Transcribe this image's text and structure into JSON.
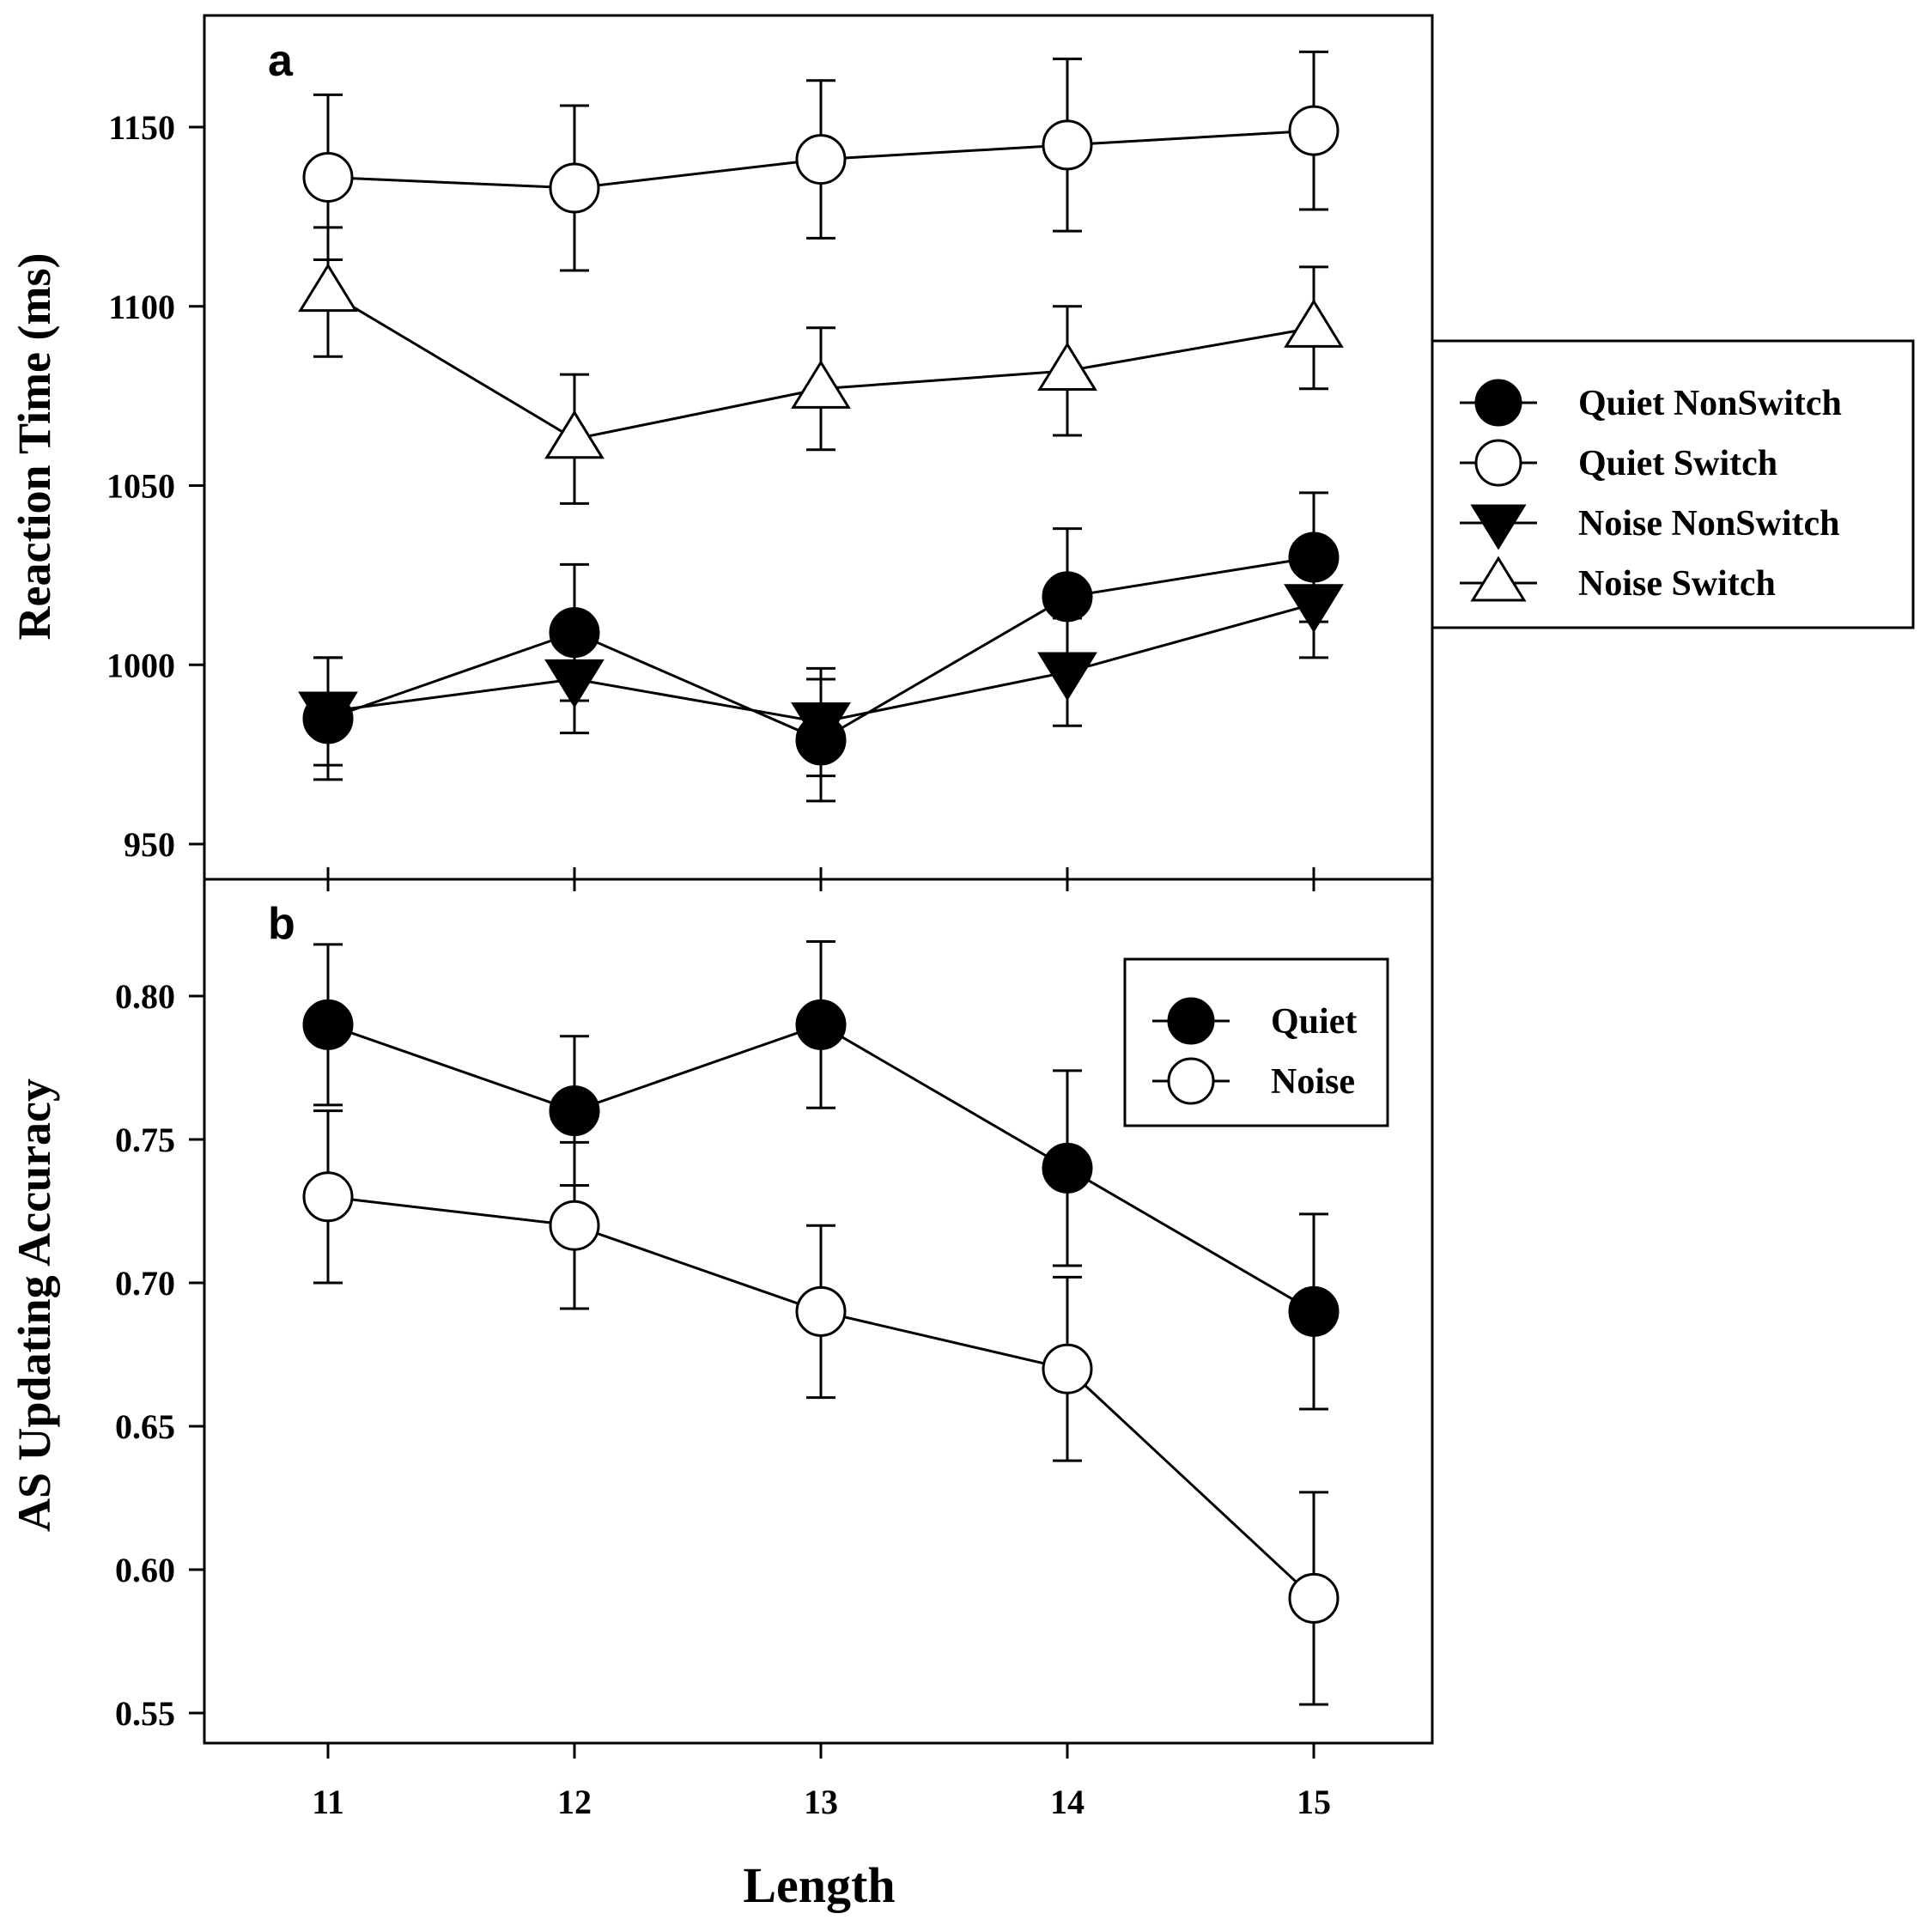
{
  "chart_data": [
    {
      "id": "a",
      "type": "line",
      "panel_label": "a",
      "ylabel": "Reaction Time (ms)",
      "xlabel": "Length",
      "x": [
        11,
        12,
        13,
        14,
        15
      ],
      "ylim": [
        940,
        1175
      ],
      "yticks": [
        950,
        1000,
        1050,
        1100,
        1150
      ],
      "legend_position": "outside-right",
      "series": [
        {
          "name": "Quiet NonSwitch",
          "marker": "circle",
          "fill": "#000000",
          "values": [
            985,
            1009,
            979,
            1019,
            1030
          ],
          "errors": [
            17,
            19,
            17,
            19,
            18
          ]
        },
        {
          "name": "Quiet Switch",
          "marker": "circle",
          "fill": "#ffffff",
          "values": [
            1136,
            1133,
            1141,
            1145,
            1149
          ],
          "errors": [
            23,
            23,
            22,
            24,
            22
          ]
        },
        {
          "name": "Noise NonSwitch",
          "marker": "triangle-down",
          "fill": "#000000",
          "values": [
            987,
            996,
            984,
            998,
            1017
          ],
          "errors": [
            15,
            15,
            15,
            15,
            15
          ]
        },
        {
          "name": "Noise Switch",
          "marker": "triangle-up",
          "fill": "#ffffff",
          "values": [
            1104,
            1063,
            1077,
            1082,
            1094
          ],
          "errors": [
            18,
            18,
            17,
            18,
            17
          ]
        }
      ]
    },
    {
      "id": "b",
      "type": "line",
      "panel_label": "b",
      "ylabel": "AS Updating Accuracy",
      "xlabel": "Length",
      "x": [
        11,
        12,
        13,
        14,
        15
      ],
      "ylim": [
        0.54,
        0.83
      ],
      "yticks": [
        "0.55",
        "0.60",
        "0.65",
        "0.70",
        "0.75",
        "0.80"
      ],
      "legend_position": "top-right",
      "series": [
        {
          "name": "Quiet",
          "marker": "circle",
          "fill": "#000000",
          "values": [
            0.79,
            0.76,
            0.79,
            0.74,
            0.69
          ],
          "errors": [
            0.028,
            0.026,
            0.029,
            0.034,
            0.034
          ]
        },
        {
          "name": "Noise",
          "marker": "circle",
          "fill": "#ffffff",
          "values": [
            0.73,
            0.72,
            0.69,
            0.67,
            0.59
          ],
          "errors": [
            0.03,
            0.029,
            0.03,
            0.032,
            0.037
          ]
        }
      ]
    }
  ]
}
